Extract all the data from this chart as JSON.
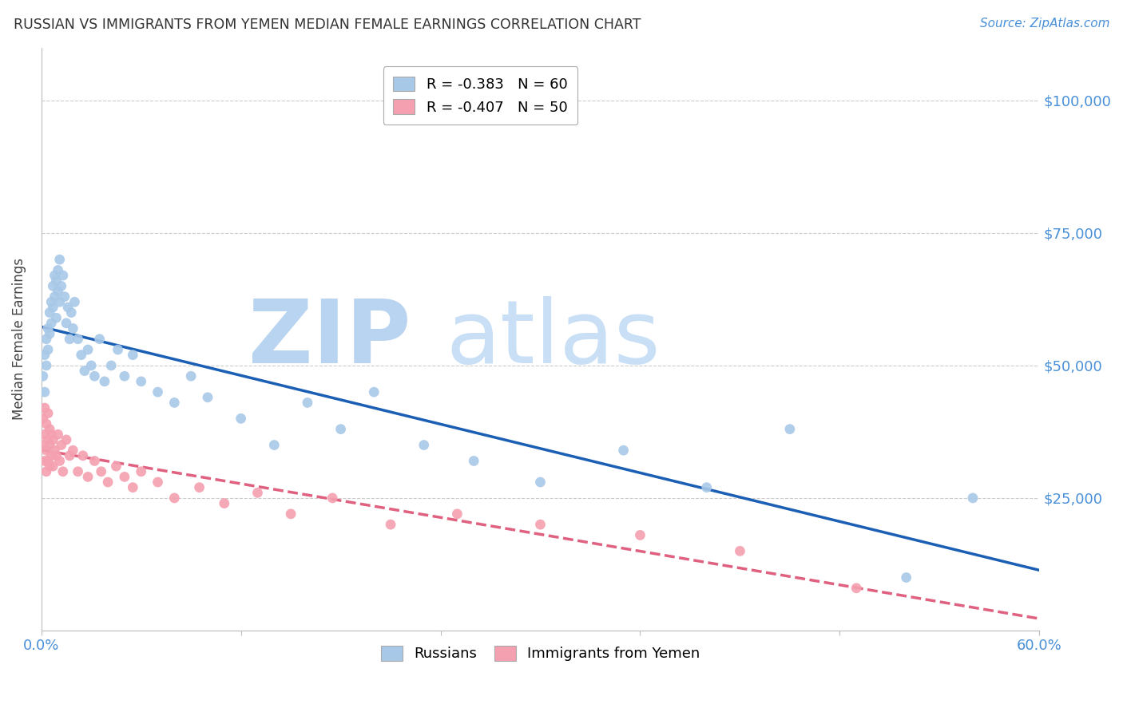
{
  "title": "RUSSIAN VS IMMIGRANTS FROM YEMEN MEDIAN FEMALE EARNINGS CORRELATION CHART",
  "source": "Source: ZipAtlas.com",
  "ylabel": "Median Female Earnings",
  "xlim": [
    0.0,
    0.6
  ],
  "ylim": [
    0,
    110000
  ],
  "yticks": [
    0,
    25000,
    50000,
    75000,
    100000
  ],
  "ytick_labels": [
    "",
    "$25,000",
    "$50,000",
    "$75,000",
    "$100,000"
  ],
  "xticks": [
    0.0,
    0.12,
    0.24,
    0.36,
    0.48,
    0.6
  ],
  "xtick_labels": [
    "0.0%",
    "",
    "",
    "",
    "",
    "60.0%"
  ],
  "legend1_label": "R = -0.383   N = 60",
  "legend2_label": "R = -0.407   N = 50",
  "legend_russians": "Russians",
  "legend_yemen": "Immigrants from Yemen",
  "russian_color": "#a8c8e8",
  "yemen_color": "#f4a0b0",
  "russian_line_color": "#1a5fb4",
  "yemen_line_color": "#e06080",
  "grid_color": "#cccccc",
  "watermark_zip": "ZIP",
  "watermark_atlas": "atlas",
  "watermark_color": "#c8dff5",
  "russians_x": [
    0.001,
    0.002,
    0.002,
    0.003,
    0.003,
    0.004,
    0.004,
    0.005,
    0.005,
    0.006,
    0.006,
    0.007,
    0.007,
    0.008,
    0.008,
    0.009,
    0.009,
    0.01,
    0.01,
    0.011,
    0.011,
    0.012,
    0.013,
    0.014,
    0.015,
    0.016,
    0.017,
    0.018,
    0.019,
    0.02,
    0.022,
    0.024,
    0.026,
    0.028,
    0.03,
    0.032,
    0.035,
    0.038,
    0.042,
    0.046,
    0.05,
    0.055,
    0.06,
    0.07,
    0.08,
    0.09,
    0.1,
    0.12,
    0.14,
    0.16,
    0.18,
    0.2,
    0.23,
    0.26,
    0.3,
    0.35,
    0.4,
    0.45,
    0.52,
    0.56
  ],
  "russians_y": [
    48000,
    52000,
    45000,
    55000,
    50000,
    57000,
    53000,
    60000,
    56000,
    62000,
    58000,
    65000,
    61000,
    67000,
    63000,
    66000,
    59000,
    64000,
    68000,
    70000,
    62000,
    65000,
    67000,
    63000,
    58000,
    61000,
    55000,
    60000,
    57000,
    62000,
    55000,
    52000,
    49000,
    53000,
    50000,
    48000,
    55000,
    47000,
    50000,
    53000,
    48000,
    52000,
    47000,
    45000,
    43000,
    48000,
    44000,
    40000,
    35000,
    43000,
    38000,
    45000,
    35000,
    32000,
    28000,
    34000,
    27000,
    38000,
    10000,
    25000
  ],
  "yemen_x": [
    0.001,
    0.001,
    0.002,
    0.002,
    0.002,
    0.003,
    0.003,
    0.003,
    0.004,
    0.004,
    0.004,
    0.005,
    0.005,
    0.005,
    0.006,
    0.006,
    0.007,
    0.007,
    0.008,
    0.009,
    0.01,
    0.011,
    0.012,
    0.013,
    0.015,
    0.017,
    0.019,
    0.022,
    0.025,
    0.028,
    0.032,
    0.036,
    0.04,
    0.045,
    0.05,
    0.055,
    0.06,
    0.07,
    0.08,
    0.095,
    0.11,
    0.13,
    0.15,
    0.175,
    0.21,
    0.25,
    0.3,
    0.36,
    0.42,
    0.49
  ],
  "yemen_y": [
    40000,
    35000,
    42000,
    37000,
    32000,
    39000,
    34000,
    30000,
    41000,
    36000,
    32000,
    38000,
    35000,
    31000,
    37000,
    33000,
    36000,
    31000,
    34000,
    33000,
    37000,
    32000,
    35000,
    30000,
    36000,
    33000,
    34000,
    30000,
    33000,
    29000,
    32000,
    30000,
    28000,
    31000,
    29000,
    27000,
    30000,
    28000,
    25000,
    27000,
    24000,
    26000,
    22000,
    25000,
    20000,
    22000,
    20000,
    18000,
    15000,
    8000
  ],
  "russian_line_x": [
    0.0,
    0.6
  ],
  "russian_line_y": [
    58000,
    20000
  ],
  "yemen_line_x": [
    0.0,
    0.45
  ],
  "yemen_line_y": [
    40000,
    20000
  ]
}
